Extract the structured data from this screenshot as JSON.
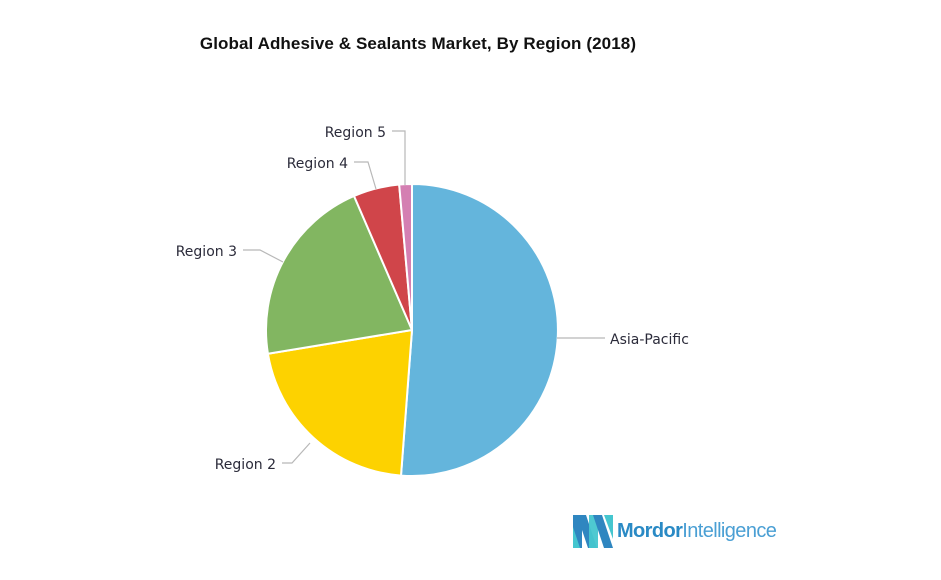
{
  "chart_data": {
    "type": "pie",
    "title": "Global Adhesive & Sealants Market, By Region (2018)",
    "categories": [
      "Asia-Pacific",
      "Region 2",
      "Region 3",
      "Region 4",
      "Region 5"
    ],
    "values": [
      51.2,
      21.2,
      21.1,
      5.1,
      1.4
    ],
    "colors": [
      "#64b5dc",
      "#fdd200",
      "#82b661",
      "#d0454a",
      "#d47fb2"
    ],
    "start_angle_deg": 0,
    "direction": "clockwise",
    "legend": "none (data labels with connectors)",
    "xlabel": "",
    "ylabel": ""
  },
  "header": {
    "title": "Global Adhesive & Sealants Market, By Region (2018)"
  },
  "labels": {
    "asia_pacific": "Asia-Pacific",
    "region2": "Region 2",
    "region3": "Region 3",
    "region4": "Region 4",
    "region5": "Region 5"
  },
  "branding": {
    "logo_bold": "Mordor",
    "logo_light": "Intelligence",
    "logo_icon": "mordor-intelligence-logo-icon"
  }
}
